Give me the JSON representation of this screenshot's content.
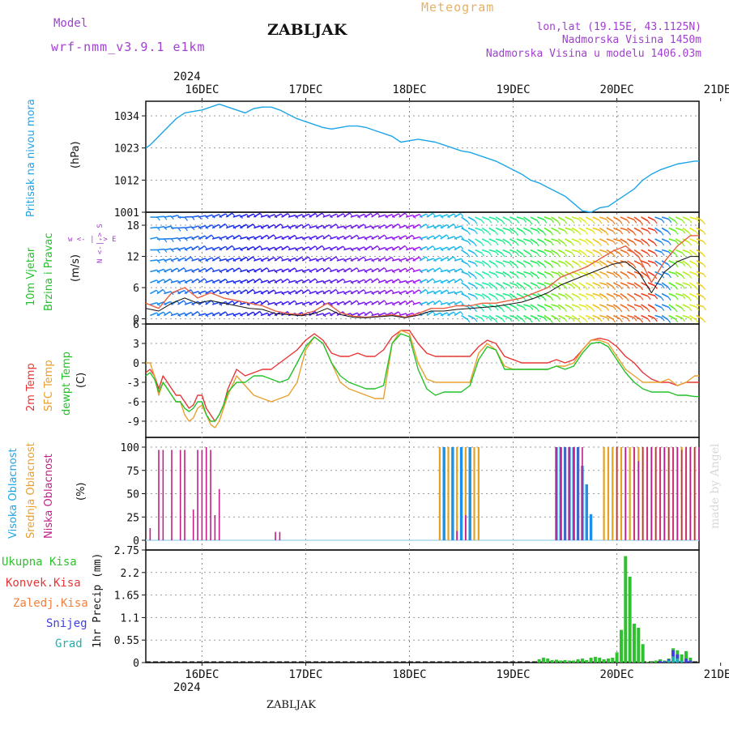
{
  "header": {
    "model_label": "Model",
    "model_name": "wrf-nmm_v3.9.1  e1km",
    "station": "ZABLJAK",
    "meteogram": "Meteogram",
    "lonlat": "lon,lat (19.15E, 43.1125N)",
    "elevation": "Nadmorska Visina 1450m",
    "model_elevation": "Nadmorska Visina u modelu 1406.03m"
  },
  "footer": {
    "station": "ZABLJAK",
    "credit": "made by Angel"
  },
  "time_axis": {
    "year": "2024",
    "day_labels": [
      "16DEC",
      "17DEC",
      "18DEC",
      "19DEC",
      "20DEC",
      "21DEC"
    ],
    "range_hours": [
      -13,
      115
    ]
  },
  "colors": {
    "pressure": "#1ea5e8",
    "temp2m": "#e83535",
    "sfc": "#e8a030",
    "dew": "#22c22a",
    "high_cloud": "#1e90e8",
    "mid_cloud": "#e8a020",
    "low_cloud": "#c0208a",
    "precip_total": "#30c030",
    "precip_conv": "#e83535",
    "precip_snow": "#4040e0",
    "precip_hail": "#20b0b0",
    "gust": "#e86040",
    "wind": "#111111"
  },
  "panels": {
    "pressure": {
      "label": "Pritisak na nivou mora",
      "unit": "(hPa)"
    },
    "wind": {
      "label1": "10m Vjetar",
      "label2": "Brzina i Pravac",
      "unit": "(m/s)",
      "compass": "w  <- | ->  E",
      "compass_vertical": "N <-|-> S"
    },
    "temperature": {
      "label1": "2m Temp",
      "label2": "SFC Temp",
      "label3": "dewpt Temp",
      "unit": "(C)"
    },
    "cloud": {
      "label1": "Visoka Oblacnost",
      "label2": "Srednja Oblacnost",
      "label3": "Niska Oblacnost",
      "unit": "(%)"
    },
    "precip": {
      "legend": [
        "Ukupna Kisa",
        "Konvek.Kisa",
        "Zaledj.Kisa",
        "Snijeg",
        "Grad"
      ],
      "unit": "1hr Precip (mm)"
    }
  },
  "chart_data": [
    {
      "type": "line",
      "name": "pressure",
      "yticks": [
        "1001",
        "1012",
        "1023",
        "1034"
      ],
      "ylim": [
        1001,
        1039
      ],
      "grid": true,
      "x": [
        -13,
        -12,
        -10,
        -8,
        -6,
        -4,
        -2,
        0,
        2,
        4,
        6,
        8,
        10,
        12,
        14,
        16,
        18,
        20,
        22,
        24,
        26,
        28,
        30,
        32,
        34,
        36,
        38,
        40,
        42,
        44,
        46,
        48,
        50,
        52,
        54,
        56,
        58,
        60,
        62,
        64,
        66,
        68,
        70,
        72,
        74,
        76,
        78,
        80,
        82,
        84,
        86,
        88,
        90,
        92,
        94,
        96,
        98,
        100,
        102,
        104,
        106,
        108,
        110,
        112,
        114,
        115
      ],
      "y": [
        1023,
        1024,
        1027,
        1030,
        1033,
        1035,
        1035.5,
        1036,
        1037,
        1038,
        1037,
        1036,
        1035,
        1036.5,
        1037,
        1037,
        1036,
        1034.5,
        1033,
        1032,
        1031,
        1030,
        1029.5,
        1030,
        1030.5,
        1030.5,
        1030,
        1029,
        1028,
        1027,
        1025,
        1025.5,
        1026,
        1025.5,
        1025,
        1024,
        1023,
        1022,
        1021.5,
        1020.5,
        1019.5,
        1018.5,
        1017,
        1015.5,
        1014,
        1012,
        1011,
        1009.5,
        1008,
        1006.5,
        1004,
        1001.5,
        1001,
        1002.5,
        1003,
        1005,
        1007,
        1009,
        1012,
        1014,
        1015.5,
        1016.5,
        1017.5,
        1018,
        1018.5,
        1018.5
      ]
    },
    {
      "type": "line",
      "name": "wind",
      "yticks": [
        "0",
        "6",
        "12",
        "18"
      ],
      "ylim": [
        -1,
        20.5
      ],
      "x": [
        -13,
        -10,
        -7,
        -4,
        -1,
        2,
        5,
        8,
        11,
        14,
        17,
        20,
        23,
        26,
        29,
        32,
        35,
        38,
        41,
        44,
        47,
        50,
        53,
        56,
        59,
        62,
        65,
        68,
        71,
        74,
        77,
        80,
        83,
        86,
        89,
        92,
        95,
        98,
        101,
        104,
        107,
        110,
        113,
        115
      ],
      "series": [
        {
          "name": "gust",
          "values": [
            3,
            2,
            5,
            6,
            4,
            5,
            4,
            3.5,
            3,
            2.5,
            1.5,
            1,
            0.8,
            1.5,
            3,
            1.2,
            0.5,
            0.3,
            0.5,
            0.8,
            0.3,
            1,
            2,
            2,
            2.5,
            2.5,
            3,
            3,
            3.5,
            4,
            5,
            6,
            8,
            9,
            10,
            11.5,
            13,
            14,
            12,
            7,
            11,
            14,
            16,
            16
          ]
        },
        {
          "name": "wind",
          "values": [
            2,
            1.5,
            3,
            4,
            3,
            3.5,
            3,
            2.5,
            2,
            1.8,
            1,
            0.8,
            0.6,
            1,
            2,
            0.8,
            0.3,
            0.2,
            0.4,
            0.6,
            0.2,
            0.7,
            1.5,
            1.5,
            1.8,
            2,
            2.2,
            2.4,
            2.8,
            3.2,
            4,
            5,
            6.5,
            7.5,
            8.5,
            9.5,
            10.5,
            11,
            9,
            5,
            9,
            11,
            12,
            12
          ]
        }
      ]
    },
    {
      "type": "line",
      "name": "temperature",
      "yticks": [
        "-9",
        "-6",
        "-3",
        "0",
        "3",
        "6"
      ],
      "ylim": [
        -11.5,
        6
      ],
      "x": [
        -13,
        -12,
        -11,
        -10,
        -9,
        -8,
        -7,
        -6,
        -5,
        -4,
        -3,
        -2,
        -1,
        0,
        1,
        2,
        3,
        4,
        5,
        6,
        8,
        10,
        12,
        14,
        16,
        18,
        20,
        22,
        24,
        26,
        28,
        30,
        32,
        34,
        36,
        38,
        40,
        42,
        44,
        46,
        48,
        50,
        52,
        54,
        56,
        58,
        60,
        62,
        64,
        66,
        68,
        70,
        72,
        74,
        76,
        78,
        80,
        82,
        84,
        86,
        88,
        90,
        92,
        94,
        96,
        98,
        100,
        102,
        104,
        106,
        108,
        110,
        112,
        114,
        115
      ],
      "series": [
        {
          "name": "2m Temp",
          "values": [
            -1.5,
            -1,
            -2,
            -4,
            -2,
            -3,
            -4,
            -5,
            -5,
            -6,
            -7,
            -6.5,
            -5,
            -5,
            -7,
            -8,
            -9,
            -8,
            -6.5,
            -4,
            -1,
            -2,
            -1.5,
            -1,
            -1,
            0,
            1,
            2,
            3.5,
            4.5,
            3.5,
            1.5,
            1,
            1,
            1.5,
            1,
            1,
            2,
            4,
            5,
            5,
            3,
            1.5,
            1,
            1,
            1,
            1,
            1,
            2.5,
            3.5,
            3,
            1,
            0.5,
            0,
            0,
            0,
            0,
            0.5,
            0,
            0.5,
            2,
            3.5,
            3.8,
            3.5,
            2.5,
            1,
            0,
            -1.5,
            -2.5,
            -3,
            -3,
            -3.5,
            -3,
            -3,
            -3
          ]
        },
        {
          "name": "SFC Temp",
          "values": [
            0,
            0,
            -2,
            -5,
            -3,
            -4,
            -5,
            -6,
            -6,
            -8,
            -9,
            -8.5,
            -7,
            -6.5,
            -8,
            -9.5,
            -10,
            -9,
            -7,
            -5,
            -2,
            -3.5,
            -5,
            -5.5,
            -6,
            -5.5,
            -5,
            -3,
            2,
            4,
            3,
            0,
            -3,
            -4,
            -4.5,
            -5,
            -5.5,
            -5.5,
            3,
            5,
            4.5,
            0,
            -2.5,
            -3,
            -3,
            -3,
            -3,
            -3,
            1.5,
            3,
            2,
            -0.5,
            -1,
            -1,
            -1,
            -1,
            -1,
            -0.5,
            -0.5,
            0,
            2,
            3.5,
            3.5,
            3,
            1,
            -1,
            -2,
            -3,
            -3,
            -3,
            -2.5,
            -3.5,
            -3,
            -2,
            -2
          ]
        },
        {
          "name": "dewpt Temp",
          "values": [
            -2,
            -1.5,
            -2.5,
            -4.5,
            -3,
            -4,
            -5,
            -6,
            -6,
            -7,
            -7.5,
            -7,
            -6,
            -6,
            -8,
            -9,
            -9,
            -8,
            -6.5,
            -4.5,
            -3,
            -3,
            -2,
            -2,
            -2.5,
            -3,
            -2.5,
            0,
            2.5,
            4,
            3,
            0,
            -2,
            -3,
            -3.5,
            -4,
            -4,
            -3.5,
            3,
            4.5,
            4,
            -1,
            -4,
            -5,
            -4.5,
            -4.5,
            -4.5,
            -3.5,
            0.5,
            2.5,
            2,
            -1,
            -1,
            -1,
            -1,
            -1,
            -1,
            -0.5,
            -1,
            -0.5,
            1.5,
            3,
            3.2,
            2.5,
            0.5,
            -1.5,
            -3,
            -4,
            -4.5,
            -4.5,
            -4.5,
            -5,
            -5,
            -5.2,
            -5.2
          ]
        }
      ]
    },
    {
      "type": "bar",
      "name": "cloud",
      "yticks": [
        "0",
        "25",
        "50",
        "75",
        "100"
      ],
      "ylim": [
        0,
        100
      ],
      "series": [
        {
          "name": "Niska Oblacnost",
          "x": [
            -12,
            -10,
            -9,
            -7,
            -5,
            -4,
            -2,
            0,
            1,
            2,
            -1,
            3,
            4,
            17,
            18,
            59,
            61,
            96,
            98,
            100,
            101,
            102,
            103,
            104,
            105,
            106,
            107,
            108,
            109,
            110,
            111,
            112,
            113,
            114,
            115,
            82,
            83,
            84,
            85,
            86,
            87,
            88
          ],
          "values": [
            13,
            97,
            97,
            97,
            97,
            97,
            33,
            97,
            100,
            97,
            97,
            27,
            55,
            9,
            9,
            10,
            27,
            100,
            100,
            100,
            85,
            100,
            100,
            100,
            100,
            100,
            100,
            100,
            100,
            100,
            97,
            100,
            100,
            100,
            100,
            100,
            100,
            100,
            100,
            100,
            100,
            100
          ]
        },
        {
          "name": "Srednja Oblacnost",
          "x": [
            55,
            56,
            57,
            58,
            59,
            60,
            61,
            62,
            63,
            64,
            93,
            94,
            95,
            96,
            97,
            98,
            99,
            100,
            101,
            102,
            103,
            104,
            105,
            106,
            107,
            108,
            109,
            110,
            111,
            112,
            113,
            114
          ],
          "values": [
            100,
            100,
            100,
            100,
            100,
            100,
            100,
            100,
            100,
            100,
            100,
            100,
            100,
            100,
            100,
            100,
            100,
            100,
            100,
            100,
            100,
            100,
            100,
            100,
            100,
            100,
            100,
            100,
            100,
            100,
            100,
            100
          ]
        },
        {
          "name": "Visoka Oblacnost",
          "x": [
            56,
            58,
            60,
            62,
            82,
            83,
            84,
            85,
            86,
            87,
            88,
            89,
            90
          ],
          "values": [
            100,
            100,
            100,
            100,
            100,
            100,
            100,
            100,
            100,
            100,
            80,
            60,
            28
          ]
        }
      ]
    },
    {
      "type": "bar",
      "name": "precip",
      "yticks": [
        "0",
        "0.55",
        "1.1",
        "1.65",
        "2.2",
        "2.75"
      ],
      "ylim": [
        0,
        2.75
      ],
      "series": [
        {
          "name": "Ukupna Kisa",
          "x": [
            78,
            79,
            80,
            81,
            82,
            83,
            84,
            85,
            86,
            87,
            88,
            89,
            90,
            91,
            92,
            93,
            94,
            95,
            96,
            97,
            98,
            99,
            100,
            101,
            102,
            103,
            104,
            105,
            106,
            107,
            108,
            109,
            110,
            111,
            112,
            113
          ],
          "values": [
            0.08,
            0.12,
            0.1,
            0.06,
            0.07,
            0.05,
            0.06,
            0.05,
            0.05,
            0.08,
            0.1,
            0.06,
            0.12,
            0.14,
            0.12,
            0.08,
            0.1,
            0.12,
            0.25,
            0.8,
            2.6,
            2.1,
            0.95,
            0.85,
            0.45,
            0.02,
            0.02,
            0.05,
            0.08,
            0.05,
            0.1,
            0.35,
            0.3,
            0.2,
            0.28,
            0.12
          ]
        },
        {
          "name": "Snijeg",
          "x": [
            106,
            107,
            108,
            109,
            110,
            111,
            112,
            113
          ],
          "values": [
            0.04,
            0.03,
            0.08,
            0.3,
            0.2,
            0.05,
            0.1,
            0.05
          ]
        },
        {
          "name": "Grad",
          "x": [
            108,
            109,
            110,
            111
          ],
          "values": [
            0.05,
            0.15,
            0.1,
            0.05
          ]
        }
      ]
    }
  ]
}
